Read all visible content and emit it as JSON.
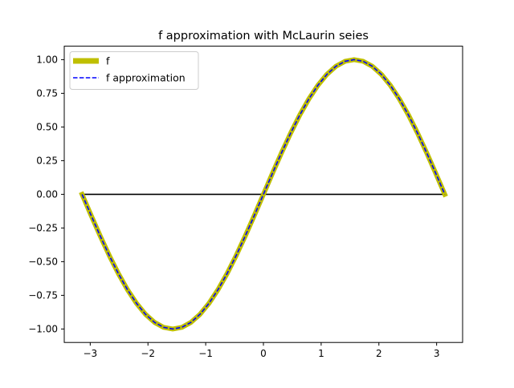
{
  "chart_data": {
    "type": "line",
    "title": "f approximation with McLaurin seies",
    "xlabel": "",
    "ylabel": "",
    "xlim": [
      -3.45,
      3.45
    ],
    "ylim": [
      -1.1,
      1.1
    ],
    "x_ticks": [
      -3,
      -2,
      -1,
      0,
      1,
      2,
      3
    ],
    "x_tick_labels": [
      "−3",
      "−2",
      "−1",
      "0",
      "1",
      "2",
      "3"
    ],
    "y_ticks": [
      -1.0,
      -0.75,
      -0.5,
      -0.25,
      0.0,
      0.25,
      0.5,
      0.75,
      1.0
    ],
    "y_tick_labels": [
      "−1.00",
      "−0.75",
      "−0.50",
      "−0.25",
      "0.00",
      "0.25",
      "0.50",
      "0.75",
      "1.00"
    ],
    "grid": false,
    "legend_position": "top-left",
    "series": [
      {
        "name": "f",
        "color": "#bfbf00",
        "style": "solid-thick",
        "x": [
          -3.1416,
          -2.9845,
          -2.8274,
          -2.6704,
          -2.5133,
          -2.3562,
          -2.1991,
          -2.042,
          -1.885,
          -1.7279,
          -1.5708,
          -1.4137,
          -1.2566,
          -1.0996,
          -0.9425,
          -0.7854,
          -0.6283,
          -0.4712,
          -0.3142,
          -0.1571,
          0.0,
          0.1571,
          0.3142,
          0.4712,
          0.6283,
          0.7854,
          0.9425,
          1.0996,
          1.2566,
          1.4137,
          1.5708,
          1.7279,
          1.885,
          2.042,
          2.1991,
          2.3562,
          2.5133,
          2.6704,
          2.8274,
          2.9845,
          3.1416
        ],
        "y": [
          0.0,
          -0.1564,
          -0.309,
          -0.454,
          -0.5878,
          -0.7071,
          -0.809,
          -0.891,
          -0.9511,
          -0.9877,
          -1.0,
          -0.9877,
          -0.9511,
          -0.891,
          -0.809,
          -0.7071,
          -0.5878,
          -0.454,
          -0.309,
          -0.1564,
          0.0,
          0.1564,
          0.309,
          0.454,
          0.5878,
          0.7071,
          0.809,
          0.891,
          0.9511,
          0.9877,
          1.0,
          0.9877,
          0.9511,
          0.891,
          0.809,
          0.7071,
          0.5878,
          0.454,
          0.309,
          0.1564,
          0.0
        ]
      },
      {
        "name": "f approximation",
        "color": "#0000ff",
        "style": "dashed",
        "x": [
          -3.1416,
          -2.9845,
          -2.8274,
          -2.6704,
          -2.5133,
          -2.3562,
          -2.1991,
          -2.042,
          -1.885,
          -1.7279,
          -1.5708,
          -1.4137,
          -1.2566,
          -1.0996,
          -0.9425,
          -0.7854,
          -0.6283,
          -0.4712,
          -0.3142,
          -0.1571,
          0.0,
          0.1571,
          0.3142,
          0.4712,
          0.6283,
          0.7854,
          0.9425,
          1.0996,
          1.2566,
          1.4137,
          1.5708,
          1.7279,
          1.885,
          2.042,
          2.1991,
          2.3562,
          2.5133,
          2.6704,
          2.8274,
          2.9845,
          3.1416
        ],
        "y": [
          0.0,
          -0.1564,
          -0.309,
          -0.454,
          -0.5878,
          -0.7071,
          -0.809,
          -0.891,
          -0.9511,
          -0.9877,
          -1.0,
          -0.9877,
          -0.9511,
          -0.891,
          -0.809,
          -0.7071,
          -0.5878,
          -0.454,
          -0.309,
          -0.1564,
          0.0,
          0.1564,
          0.309,
          0.454,
          0.5878,
          0.7071,
          0.809,
          0.891,
          0.9511,
          0.9877,
          1.0,
          0.9877,
          0.9511,
          0.891,
          0.809,
          0.7071,
          0.5878,
          0.454,
          0.309,
          0.1564,
          0.0
        ]
      }
    ],
    "reference_line": {
      "color": "#000000",
      "x": [
        -3.1416,
        3.1416
      ],
      "y": [
        0.0,
        0.0
      ]
    }
  }
}
